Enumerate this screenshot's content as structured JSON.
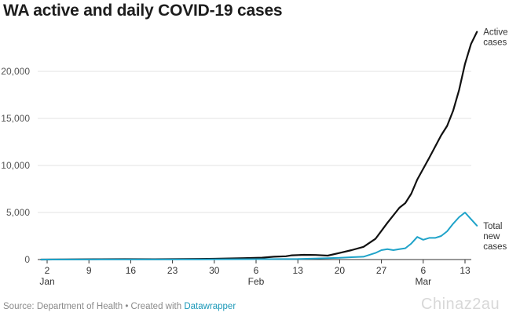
{
  "title": "WA active and daily COVID-19 cases",
  "footer": {
    "source": "Source: Department of Health • Created with ",
    "link": "Datawrapper"
  },
  "watermark": "Chinaz2au",
  "colors": {
    "active": "#111111",
    "new": "#1fa3c9",
    "grid": "#e3e3e3",
    "baseline": "#333333"
  },
  "chart_data": {
    "type": "line",
    "title": "WA active and daily COVID-19 cases",
    "ylim": [
      0,
      24000
    ],
    "yticks": [
      0,
      5000,
      10000,
      15000,
      20000
    ],
    "ytick_labels": [
      "0",
      "5,000",
      "10,000",
      "15,000",
      "20,000"
    ],
    "xlim": [
      1,
      71
    ],
    "xticks": [
      {
        "day": 2,
        "label": "2",
        "sub": "Jan"
      },
      {
        "day": 9,
        "label": "9",
        "sub": ""
      },
      {
        "day": 16,
        "label": "16",
        "sub": ""
      },
      {
        "day": 23,
        "label": "23",
        "sub": ""
      },
      {
        "day": 30,
        "label": "30",
        "sub": ""
      },
      {
        "day": 37,
        "label": "6",
        "sub": "Feb"
      },
      {
        "day": 44,
        "label": "13",
        "sub": ""
      },
      {
        "day": 51,
        "label": "20",
        "sub": ""
      },
      {
        "day": 58,
        "label": "27",
        "sub": ""
      },
      {
        "day": 65,
        "label": "6",
        "sub": "Mar"
      },
      {
        "day": 72,
        "label": "13",
        "sub": ""
      }
    ],
    "grid": true,
    "series": [
      {
        "name": "Active cases",
        "label_lines": [
          "Active",
          "cases"
        ],
        "color": "#111111",
        "points": [
          [
            1,
            0
          ],
          [
            5,
            20
          ],
          [
            10,
            30
          ],
          [
            15,
            40
          ],
          [
            20,
            35
          ],
          [
            25,
            50
          ],
          [
            30,
            80
          ],
          [
            35,
            150
          ],
          [
            38,
            200
          ],
          [
            40,
            300
          ],
          [
            42,
            350
          ],
          [
            43,
            450
          ],
          [
            45,
            500
          ],
          [
            47,
            480
          ],
          [
            49,
            420
          ],
          [
            51,
            700
          ],
          [
            53,
            1000
          ],
          [
            55,
            1350
          ],
          [
            57,
            2200
          ],
          [
            59,
            3900
          ],
          [
            61,
            5500
          ],
          [
            62,
            6000
          ],
          [
            63,
            7000
          ],
          [
            64,
            8500
          ],
          [
            66,
            10800
          ],
          [
            68,
            13200
          ],
          [
            69,
            14200
          ],
          [
            70,
            15800
          ],
          [
            71,
            18000
          ],
          [
            72,
            20800
          ],
          [
            73,
            22900
          ],
          [
            74,
            24200
          ]
        ]
      },
      {
        "name": "Total new cases",
        "label_lines": [
          "Total",
          "new",
          "cases"
        ],
        "color": "#1fa3c9",
        "points": [
          [
            1,
            0
          ],
          [
            10,
            5
          ],
          [
            20,
            10
          ],
          [
            30,
            20
          ],
          [
            38,
            40
          ],
          [
            44,
            60
          ],
          [
            49,
            150
          ],
          [
            51,
            180
          ],
          [
            53,
            250
          ],
          [
            55,
            300
          ],
          [
            57,
            700
          ],
          [
            58,
            1000
          ],
          [
            59,
            1100
          ],
          [
            60,
            1000
          ],
          [
            61,
            1100
          ],
          [
            62,
            1200
          ],
          [
            63,
            1700
          ],
          [
            64,
            2400
          ],
          [
            65,
            2100
          ],
          [
            66,
            2300
          ],
          [
            67,
            2300
          ],
          [
            68,
            2500
          ],
          [
            69,
            3000
          ],
          [
            70,
            3800
          ],
          [
            71,
            4500
          ],
          [
            72,
            5000
          ],
          [
            73,
            4300
          ],
          [
            74,
            3600
          ]
        ]
      }
    ]
  }
}
